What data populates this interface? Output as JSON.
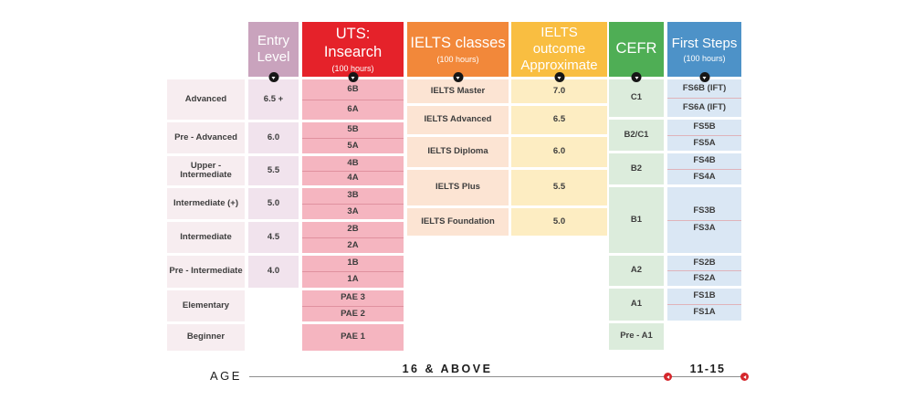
{
  "headers": {
    "entry_level": {
      "title": "Entry Level"
    },
    "uts_insearch": {
      "title": "UTS: Insearch",
      "subtitle": "(100 hours)"
    },
    "ielts_classes": {
      "title": "IELTS classes",
      "subtitle": "(100 hours)"
    },
    "ielts_outcome": {
      "title": "IELTS outcome Approximate"
    },
    "cefr": {
      "title": "CEFR"
    },
    "first_steps": {
      "title": "First Steps",
      "subtitle": "(100 hours)"
    }
  },
  "levels": [
    {
      "label": "Advanced",
      "entry": "6.5 +"
    },
    {
      "label": "Pre - Advanced",
      "entry": "6.0"
    },
    {
      "label": "Upper - Intermediate",
      "entry": "5.5"
    },
    {
      "label": "Intermediate (+)",
      "entry": "5.0"
    },
    {
      "label": "Intermediate",
      "entry": "4.5"
    },
    {
      "label": "Pre - Intermediate",
      "entry": "4.0"
    },
    {
      "label": "Elementary",
      "entry": ""
    },
    {
      "label": "Beginner",
      "entry": ""
    }
  ],
  "uts_courses": [
    {
      "top": "6B",
      "bottom": "6A"
    },
    {
      "top": "5B",
      "bottom": "5A"
    },
    {
      "top": "4B",
      "bottom": "4A"
    },
    {
      "top": "3B",
      "bottom": "3A"
    },
    {
      "top": "2B",
      "bottom": "2A"
    },
    {
      "top": "1B",
      "bottom": "1A"
    },
    {
      "top": "PAE 3",
      "bottom": "PAE 2"
    },
    {
      "single": "PAE 1"
    }
  ],
  "ielts_rows": [
    {
      "name": "IELTS Master",
      "outcome": "7.0"
    },
    {
      "name": "IELTS Advanced",
      "outcome": "6.5"
    },
    {
      "name": "IELTS Diploma",
      "outcome": "6.0"
    },
    {
      "name": "IELTS Plus",
      "outcome": "5.5"
    },
    {
      "name": "IELTS Foundation",
      "outcome": "5.0"
    }
  ],
  "cefr_rows": [
    {
      "level": "C1",
      "fs_top": "FS6B (IFT)",
      "fs_bottom": "FS6A (IFT)"
    },
    {
      "level": "B2/C1",
      "fs_top": "FS5B",
      "fs_bottom": "FS5A"
    },
    {
      "level": "B2",
      "fs_top": "FS4B",
      "fs_bottom": "FS4A"
    },
    {
      "level": "B1",
      "fs_top": "FS3B",
      "fs_bottom": "FS3A"
    },
    {
      "level": "A2",
      "fs_top": "FS2B",
      "fs_bottom": "FS2A"
    },
    {
      "level": "A1",
      "fs_top": "FS1B",
      "fs_bottom": "FS1A"
    },
    {
      "level": "Pre - A1"
    }
  ],
  "age_axis": {
    "label": "AGE",
    "group_16_above": "16 & ABOVE",
    "group_11_15": "11-15"
  },
  "colors": {
    "entry_header": "#c9a3bd",
    "uts_header": "#e5222a",
    "ielts_header": "#f2883a",
    "outcome_header": "#f9be41",
    "cefr_header": "#4fae55",
    "first_steps_header": "#4d92c8",
    "uts_cell": "#f5b5c0",
    "ielts_cell": "#fce4d3",
    "outcome_cell": "#fdedc2",
    "cefr_cell": "#dcecdc",
    "first_steps_cell": "#dae7f4",
    "age_marker_red": "#d5262b"
  }
}
